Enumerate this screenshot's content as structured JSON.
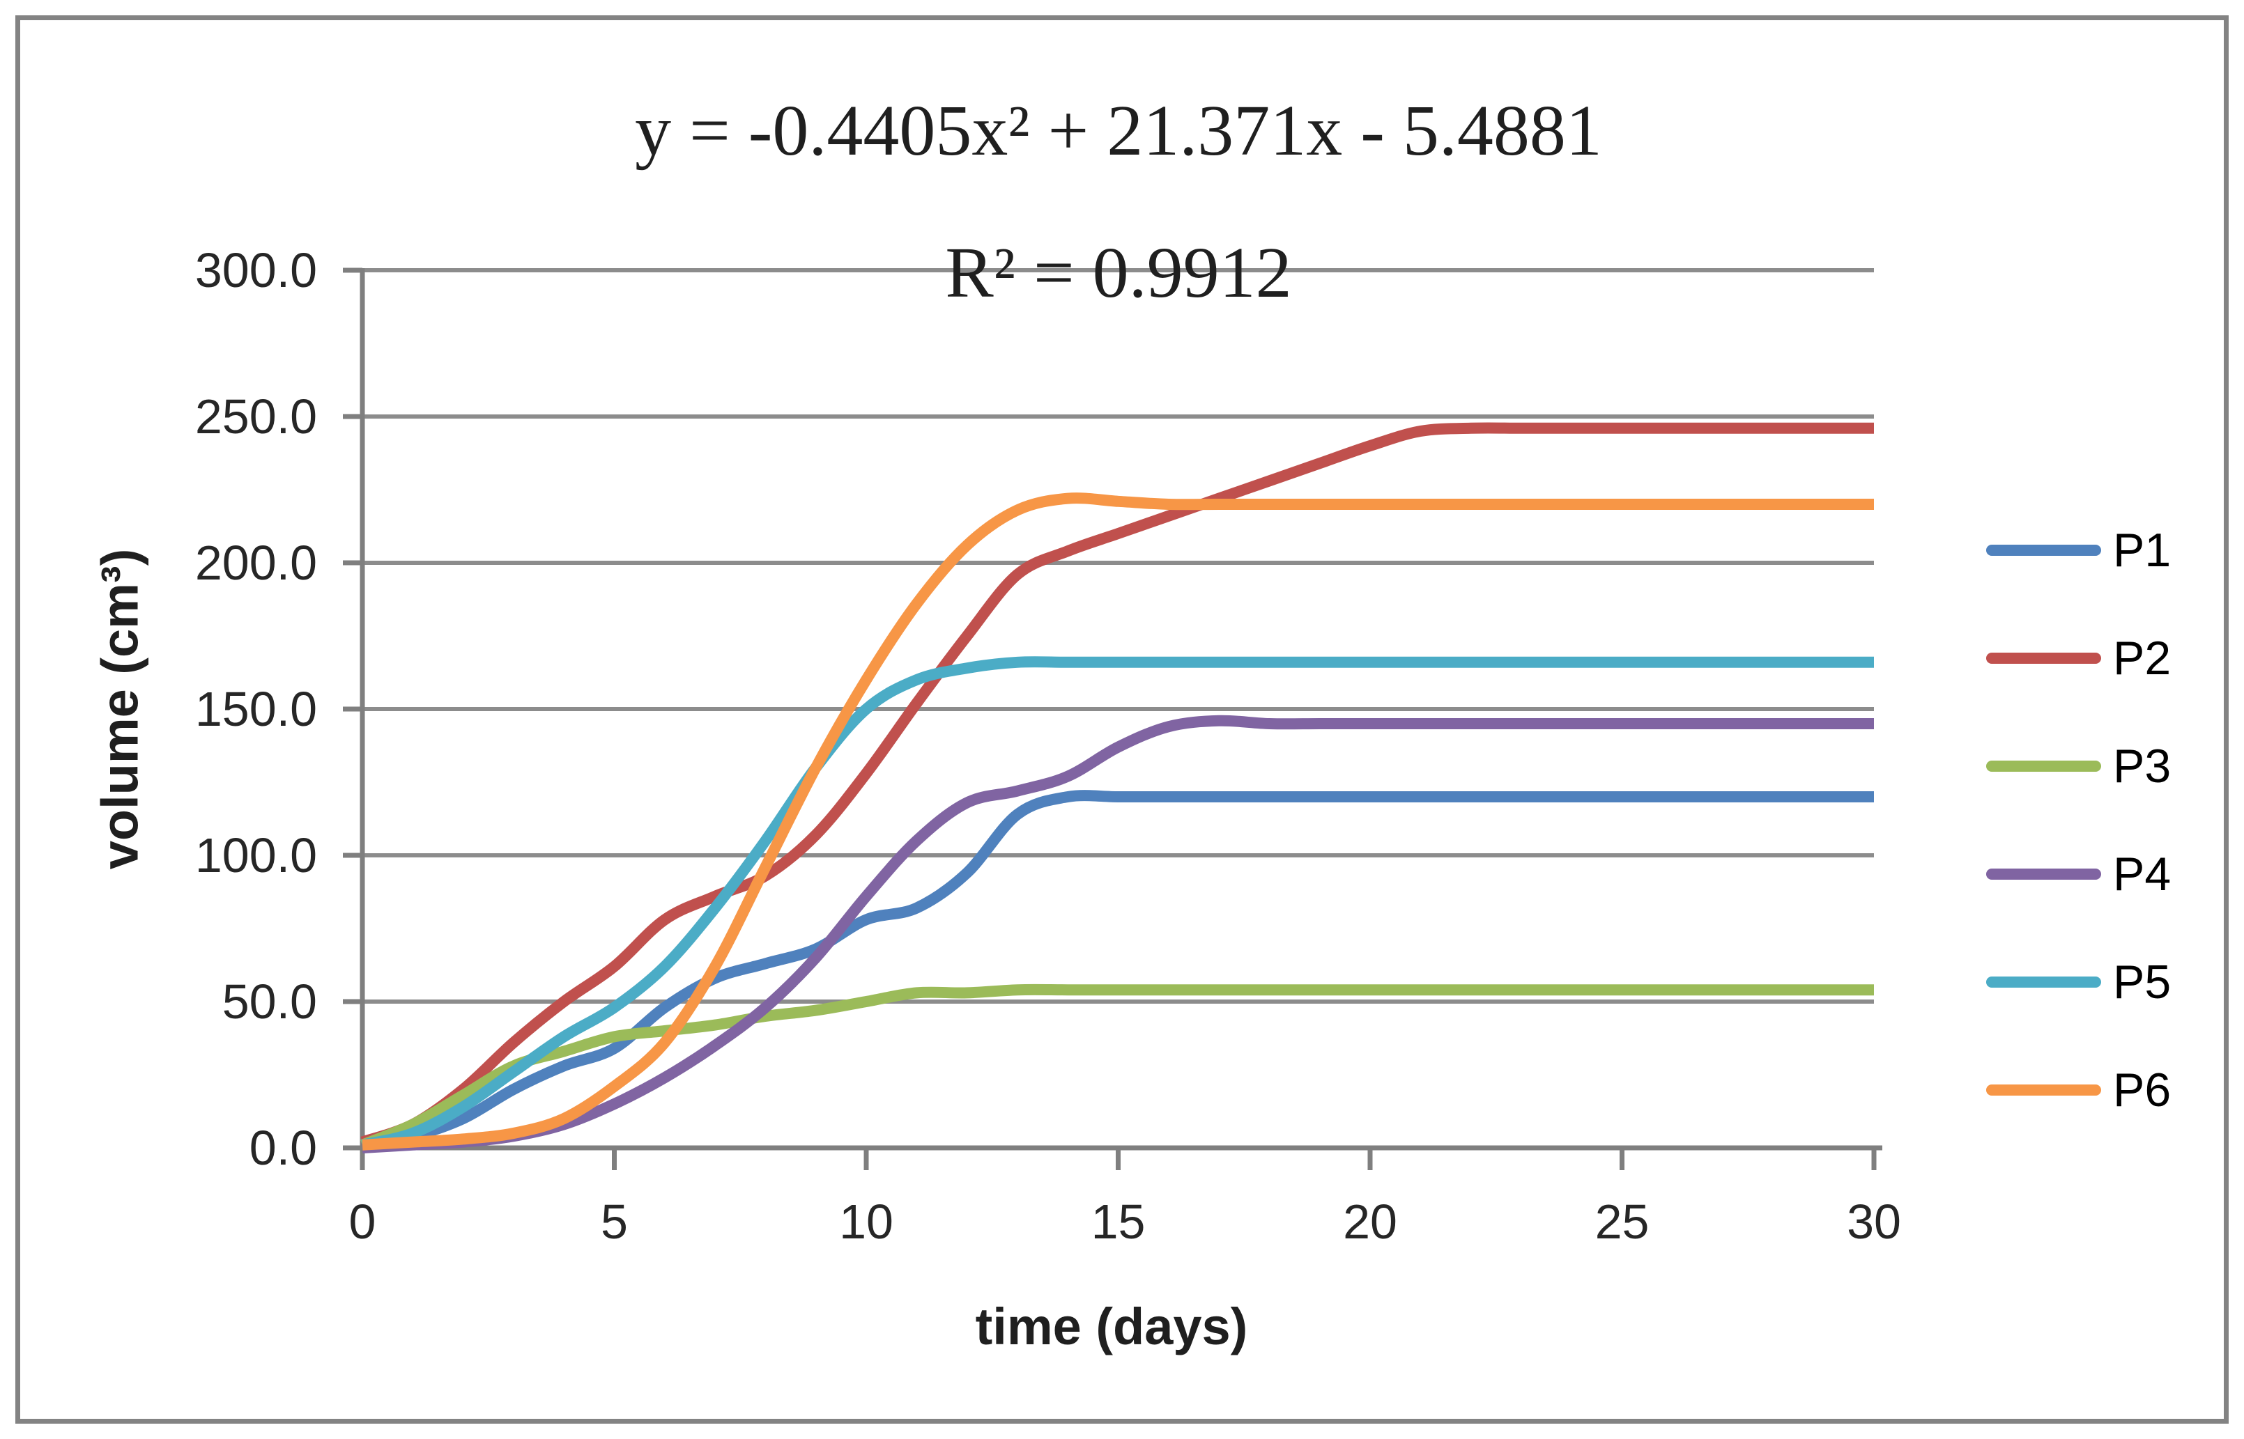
{
  "frame": {
    "border_color": "#838383"
  },
  "title": {
    "line1": "y = -0.4405x² + 21.371x - 5.4881",
    "line2": "R² = 0.9912"
  },
  "axes": {
    "y": {
      "title": "volume (cm³)",
      "tick_labels": [
        "300.0",
        "250.0",
        "200.0",
        "150.0",
        "100.0",
        "50.0",
        "0.0"
      ],
      "tick_values": [
        300,
        250,
        200,
        150,
        100,
        50,
        0
      ],
      "min": 0,
      "max": 300
    },
    "x": {
      "title": "time (days)",
      "tick_labels": [
        "0",
        "5",
        "10",
        "15",
        "20",
        "25",
        "30"
      ],
      "tick_values": [
        0,
        5,
        10,
        15,
        20,
        25,
        30
      ],
      "min": 0,
      "max": 30
    }
  },
  "legend": {
    "position": "right",
    "items": [
      {
        "label": "P1",
        "color": "#4F81BD"
      },
      {
        "label": "P2",
        "color": "#C0504D"
      },
      {
        "label": "P3",
        "color": "#9BBB59"
      },
      {
        "label": "P4",
        "color": "#8064A2"
      },
      {
        "label": "P5",
        "color": "#4BACC6"
      },
      {
        "label": "P6",
        "color": "#F79646"
      }
    ]
  },
  "grid": {
    "color": "#8C8C8C",
    "axis_color": "#7F7F7F"
  },
  "chart_data": {
    "type": "line",
    "smoothed": true,
    "title": "y = -0.4405x² + 21.371x - 5.4881 ; R² = 0.9912",
    "xlabel": "time (days)",
    "ylabel": "volume (cm³)",
    "xlim": [
      0,
      30
    ],
    "ylim": [
      0,
      300
    ],
    "grid": "horizontal",
    "legend_position": "right",
    "x": [
      0,
      1,
      2,
      3,
      4,
      5,
      6,
      7,
      8,
      9,
      10,
      11,
      12,
      13,
      14,
      15,
      16,
      17,
      18,
      19,
      20,
      21,
      22,
      23,
      24,
      25,
      26,
      27,
      28,
      29,
      30
    ],
    "series": [
      {
        "name": "P1",
        "color": "#4F81BD",
        "values": [
          1,
          4,
          10,
          20,
          28,
          34,
          48,
          58,
          63,
          68,
          78,
          82,
          94,
          114,
          120,
          120,
          120,
          120,
          120,
          120,
          120,
          120,
          120,
          120,
          120,
          120,
          120,
          120,
          120,
          120,
          120
        ]
      },
      {
        "name": "P2",
        "color": "#C0504D",
        "values": [
          2,
          8,
          20,
          36,
          50,
          62,
          78,
          86,
          93,
          107,
          128,
          152,
          175,
          196,
          204,
          210,
          216,
          222,
          228,
          234,
          240,
          245,
          246,
          246,
          246,
          246,
          246,
          246,
          246,
          246,
          246
        ]
      },
      {
        "name": "P3",
        "color": "#9BBB59",
        "values": [
          1,
          8,
          18,
          28,
          33,
          38,
          40,
          42,
          45,
          47,
          50,
          53,
          53,
          54,
          54,
          54,
          54,
          54,
          54,
          54,
          54,
          54,
          54,
          54,
          54,
          54,
          54,
          54,
          54,
          54,
          54
        ]
      },
      {
        "name": "P4",
        "color": "#8064A2",
        "values": [
          0,
          1,
          2,
          4,
          8,
          15,
          24,
          35,
          48,
          65,
          86,
          105,
          118,
          122,
          127,
          137,
          144,
          146,
          145,
          145,
          145,
          145,
          145,
          145,
          145,
          145,
          145,
          145,
          145,
          145,
          145
        ]
      },
      {
        "name": "P5",
        "color": "#4BACC6",
        "values": [
          1,
          5,
          14,
          26,
          38,
          48,
          62,
          82,
          105,
          130,
          150,
          160,
          164,
          166,
          166,
          166,
          166,
          166,
          166,
          166,
          166,
          166,
          166,
          166,
          166,
          166,
          166,
          166,
          166,
          166,
          166
        ]
      },
      {
        "name": "P6",
        "color": "#F79646",
        "values": [
          1,
          2,
          3,
          5,
          10,
          21,
          36,
          62,
          96,
          130,
          160,
          186,
          206,
          218,
          222,
          221,
          220,
          220,
          220,
          220,
          220,
          220,
          220,
          220,
          220,
          220,
          220,
          220,
          220,
          220,
          220
        ]
      }
    ]
  }
}
